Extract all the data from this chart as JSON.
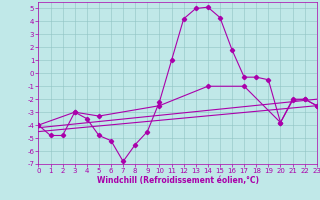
{
  "background_color": "#c0e8e8",
  "line_color": "#aa00aa",
  "xlabel": "Windchill (Refroidissement éolien,°C)",
  "xlim": [
    0,
    23
  ],
  "ylim": [
    -7,
    5.5
  ],
  "xticks": [
    0,
    1,
    2,
    3,
    4,
    5,
    6,
    7,
    8,
    9,
    10,
    11,
    12,
    13,
    14,
    15,
    16,
    17,
    18,
    19,
    20,
    21,
    22,
    23
  ],
  "yticks": [
    5,
    4,
    3,
    2,
    1,
    0,
    -1,
    -2,
    -3,
    -4,
    -5,
    -6,
    -7
  ],
  "curve1": {
    "x": [
      0,
      1,
      2,
      3,
      4,
      5,
      6,
      7,
      8,
      9,
      10,
      11,
      12,
      13,
      14,
      15,
      16,
      17,
      18,
      19,
      20,
      21,
      22,
      23
    ],
    "y": [
      -4.0,
      -4.8,
      -4.8,
      -3.0,
      -3.5,
      -4.8,
      -5.2,
      -6.8,
      -5.5,
      -4.5,
      -2.2,
      1.0,
      4.2,
      5.0,
      5.1,
      4.3,
      1.8,
      -0.3,
      -0.3,
      -0.5,
      -3.8,
      -2.0,
      -2.0,
      -2.5
    ]
  },
  "curve2": {
    "x": [
      0,
      3,
      5,
      10,
      14,
      17,
      20,
      21,
      22,
      23
    ],
    "y": [
      -4.0,
      -3.0,
      -3.3,
      -2.5,
      -1.0,
      -1.0,
      -3.8,
      -2.1,
      -2.0,
      -2.5
    ]
  },
  "curve3": {
    "x": [
      0,
      23
    ],
    "y": [
      -4.2,
      -2.0
    ]
  },
  "curve4": {
    "x": [
      0,
      23
    ],
    "y": [
      -4.5,
      -2.5
    ]
  },
  "grid_color": "#90c4c4",
  "tick_fontsize": 5,
  "xlabel_fontsize": 5.5
}
